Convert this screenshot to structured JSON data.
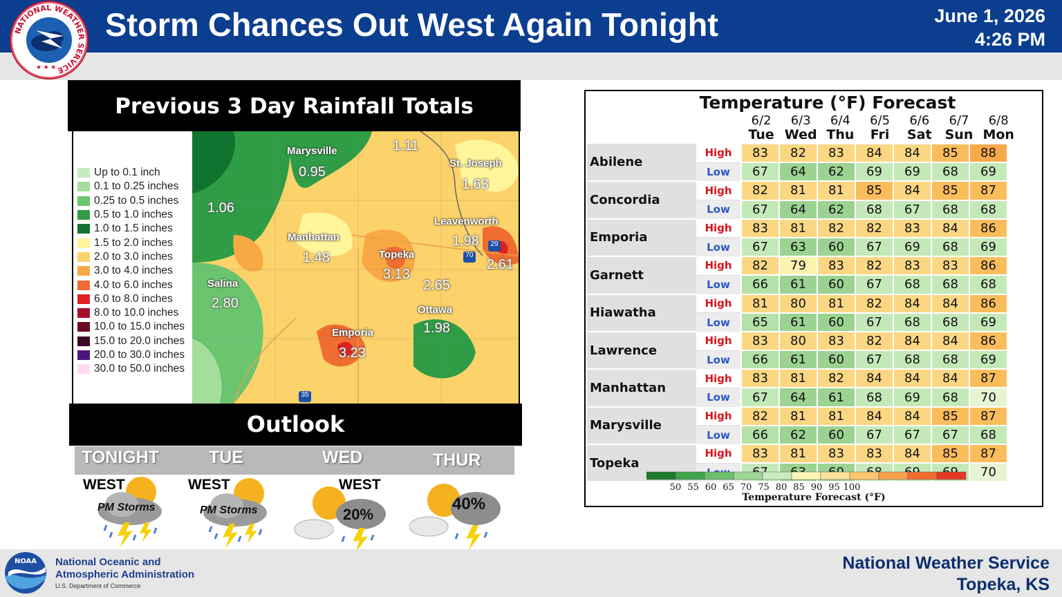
{
  "header": {
    "title": "Storm Chances Out West Again Tonight",
    "date": "June 1, 2026",
    "time": "4:26 PM"
  },
  "logo": {
    "ring_text": "NATIONAL WEATHER SERVICE"
  },
  "rainfall": {
    "title": "Previous 3 Day Rainfall Totals",
    "legend": [
      {
        "label": "Up to 0.1 inch",
        "color": "#c7ebc0"
      },
      {
        "label": "0.1 to 0.25 inches",
        "color": "#a5dd9d"
      },
      {
        "label": "0.25 to 0.5 inches",
        "color": "#6bc46e"
      },
      {
        "label": "0.5 to 1.0 inches",
        "color": "#2f9d45"
      },
      {
        "label": "1.0 to 1.5 inches",
        "color": "#10732f"
      },
      {
        "label": "1.5 to 2.0 inches",
        "color": "#fff59a"
      },
      {
        "label": "2.0 to 3.0 inches",
        "color": "#fcd26a"
      },
      {
        "label": "3.0 to 4.0 inches",
        "color": "#f8a943"
      },
      {
        "label": "4.0 to 6.0 inches",
        "color": "#f06d32"
      },
      {
        "label": "6.0 to 8.0 inches",
        "color": "#dd2222"
      },
      {
        "label": "8.0 to 10.0 inches",
        "color": "#a80e2a"
      },
      {
        "label": "10.0 to 15.0 inches",
        "color": "#6d0a22"
      },
      {
        "label": "15.0 to 20.0 inches",
        "color": "#3d0526"
      },
      {
        "label": "20.0 to 30.0 inches",
        "color": "#4a167c"
      },
      {
        "label": "30.0 to 50.0 inches",
        "color": "#ffdcf3"
      }
    ],
    "cities": [
      {
        "name": "Marysville",
        "value": "0.95"
      },
      {
        "name": "St. Joseph",
        "value": "1.63"
      },
      {
        "name": "Leavenworth",
        "value": "1.98"
      },
      {
        "name": "Manhattan",
        "value": "1.48"
      },
      {
        "name": "Topeka",
        "value": "3.13"
      },
      {
        "name": "Salina",
        "value": "2.80"
      },
      {
        "name": "Ottawa",
        "value": "1.98"
      },
      {
        "name": "Emporia",
        "value": "3.23"
      }
    ],
    "extra_values": [
      "1.11",
      "1.06",
      "2.61",
      "2.65"
    ],
    "shields": [
      "29",
      "70",
      "35"
    ]
  },
  "outlook": {
    "title": "Outlook",
    "days": [
      {
        "name": "TONIGHT",
        "region": "WEST",
        "label": "PM Storms"
      },
      {
        "name": "TUE",
        "region": "WEST",
        "label": "PM Storms"
      },
      {
        "name": "WED",
        "region": "WEST",
        "label": "20%"
      },
      {
        "name": "THUR",
        "region": "",
        "label": "40%"
      }
    ]
  },
  "temps": {
    "title": "Temperature (°F) Forecast",
    "high_label": "High",
    "low_label": "Low",
    "dates": [
      "6/2",
      "6/3",
      "6/4",
      "6/5",
      "6/6",
      "6/7",
      "6/8"
    ],
    "days": [
      "Tue",
      "Wed",
      "Thu",
      "Fri",
      "Sat",
      "Sun",
      "Mon"
    ],
    "cities": [
      {
        "name": "Abilene",
        "high": [
          83,
          82,
          83,
          84,
          84,
          85,
          88
        ],
        "low": [
          67,
          64,
          62,
          69,
          69,
          68,
          69
        ]
      },
      {
        "name": "Concordia",
        "high": [
          82,
          81,
          81,
          85,
          84,
          85,
          87
        ],
        "low": [
          67,
          64,
          62,
          68,
          67,
          68,
          68
        ]
      },
      {
        "name": "Emporia",
        "high": [
          83,
          81,
          82,
          82,
          83,
          84,
          86
        ],
        "low": [
          67,
          63,
          60,
          67,
          69,
          68,
          69
        ]
      },
      {
        "name": "Garnett",
        "high": [
          82,
          79,
          83,
          82,
          83,
          83,
          86
        ],
        "low": [
          66,
          61,
          60,
          67,
          68,
          68,
          68
        ]
      },
      {
        "name": "Hiawatha",
        "high": [
          81,
          80,
          81,
          82,
          84,
          84,
          86
        ],
        "low": [
          65,
          61,
          60,
          67,
          68,
          68,
          69
        ]
      },
      {
        "name": "Lawrence",
        "high": [
          83,
          80,
          83,
          82,
          84,
          84,
          86
        ],
        "low": [
          66,
          61,
          60,
          67,
          68,
          68,
          69
        ]
      },
      {
        "name": "Manhattan",
        "high": [
          83,
          81,
          82,
          84,
          84,
          84,
          87
        ],
        "low": [
          67,
          64,
          61,
          68,
          69,
          68,
          70
        ]
      },
      {
        "name": "Marysville",
        "high": [
          82,
          81,
          81,
          84,
          84,
          85,
          87
        ],
        "low": [
          66,
          62,
          60,
          67,
          67,
          67,
          68
        ]
      },
      {
        "name": "Topeka",
        "high": [
          83,
          81,
          83,
          83,
          84,
          85,
          87
        ],
        "low": [
          67,
          63,
          60,
          68,
          69,
          69,
          70
        ]
      }
    ],
    "scale_ticks": [
      "50",
      "55",
      "60",
      "65",
      "70",
      "75",
      "80",
      "85",
      "90",
      "95",
      "100"
    ],
    "scale_colors": [
      "#1e7a2c",
      "#3ea34a",
      "#6cc06c",
      "#9dd696",
      "#c9ecbe",
      "#fdf6b5",
      "#fde39a",
      "#fbc66d",
      "#f7a04a",
      "#f26c2e",
      "#e53a22"
    ],
    "scale_label": "Temperature Forecast (°F)"
  },
  "footer": {
    "org_line1": "National Oceanic and",
    "org_line2": "Atmospheric Administration",
    "dept": "U.S. Department of Commerce",
    "office_line1": "National Weather Service",
    "office_line2": "Topeka, KS",
    "noaa_logo_text": "NOAA"
  }
}
